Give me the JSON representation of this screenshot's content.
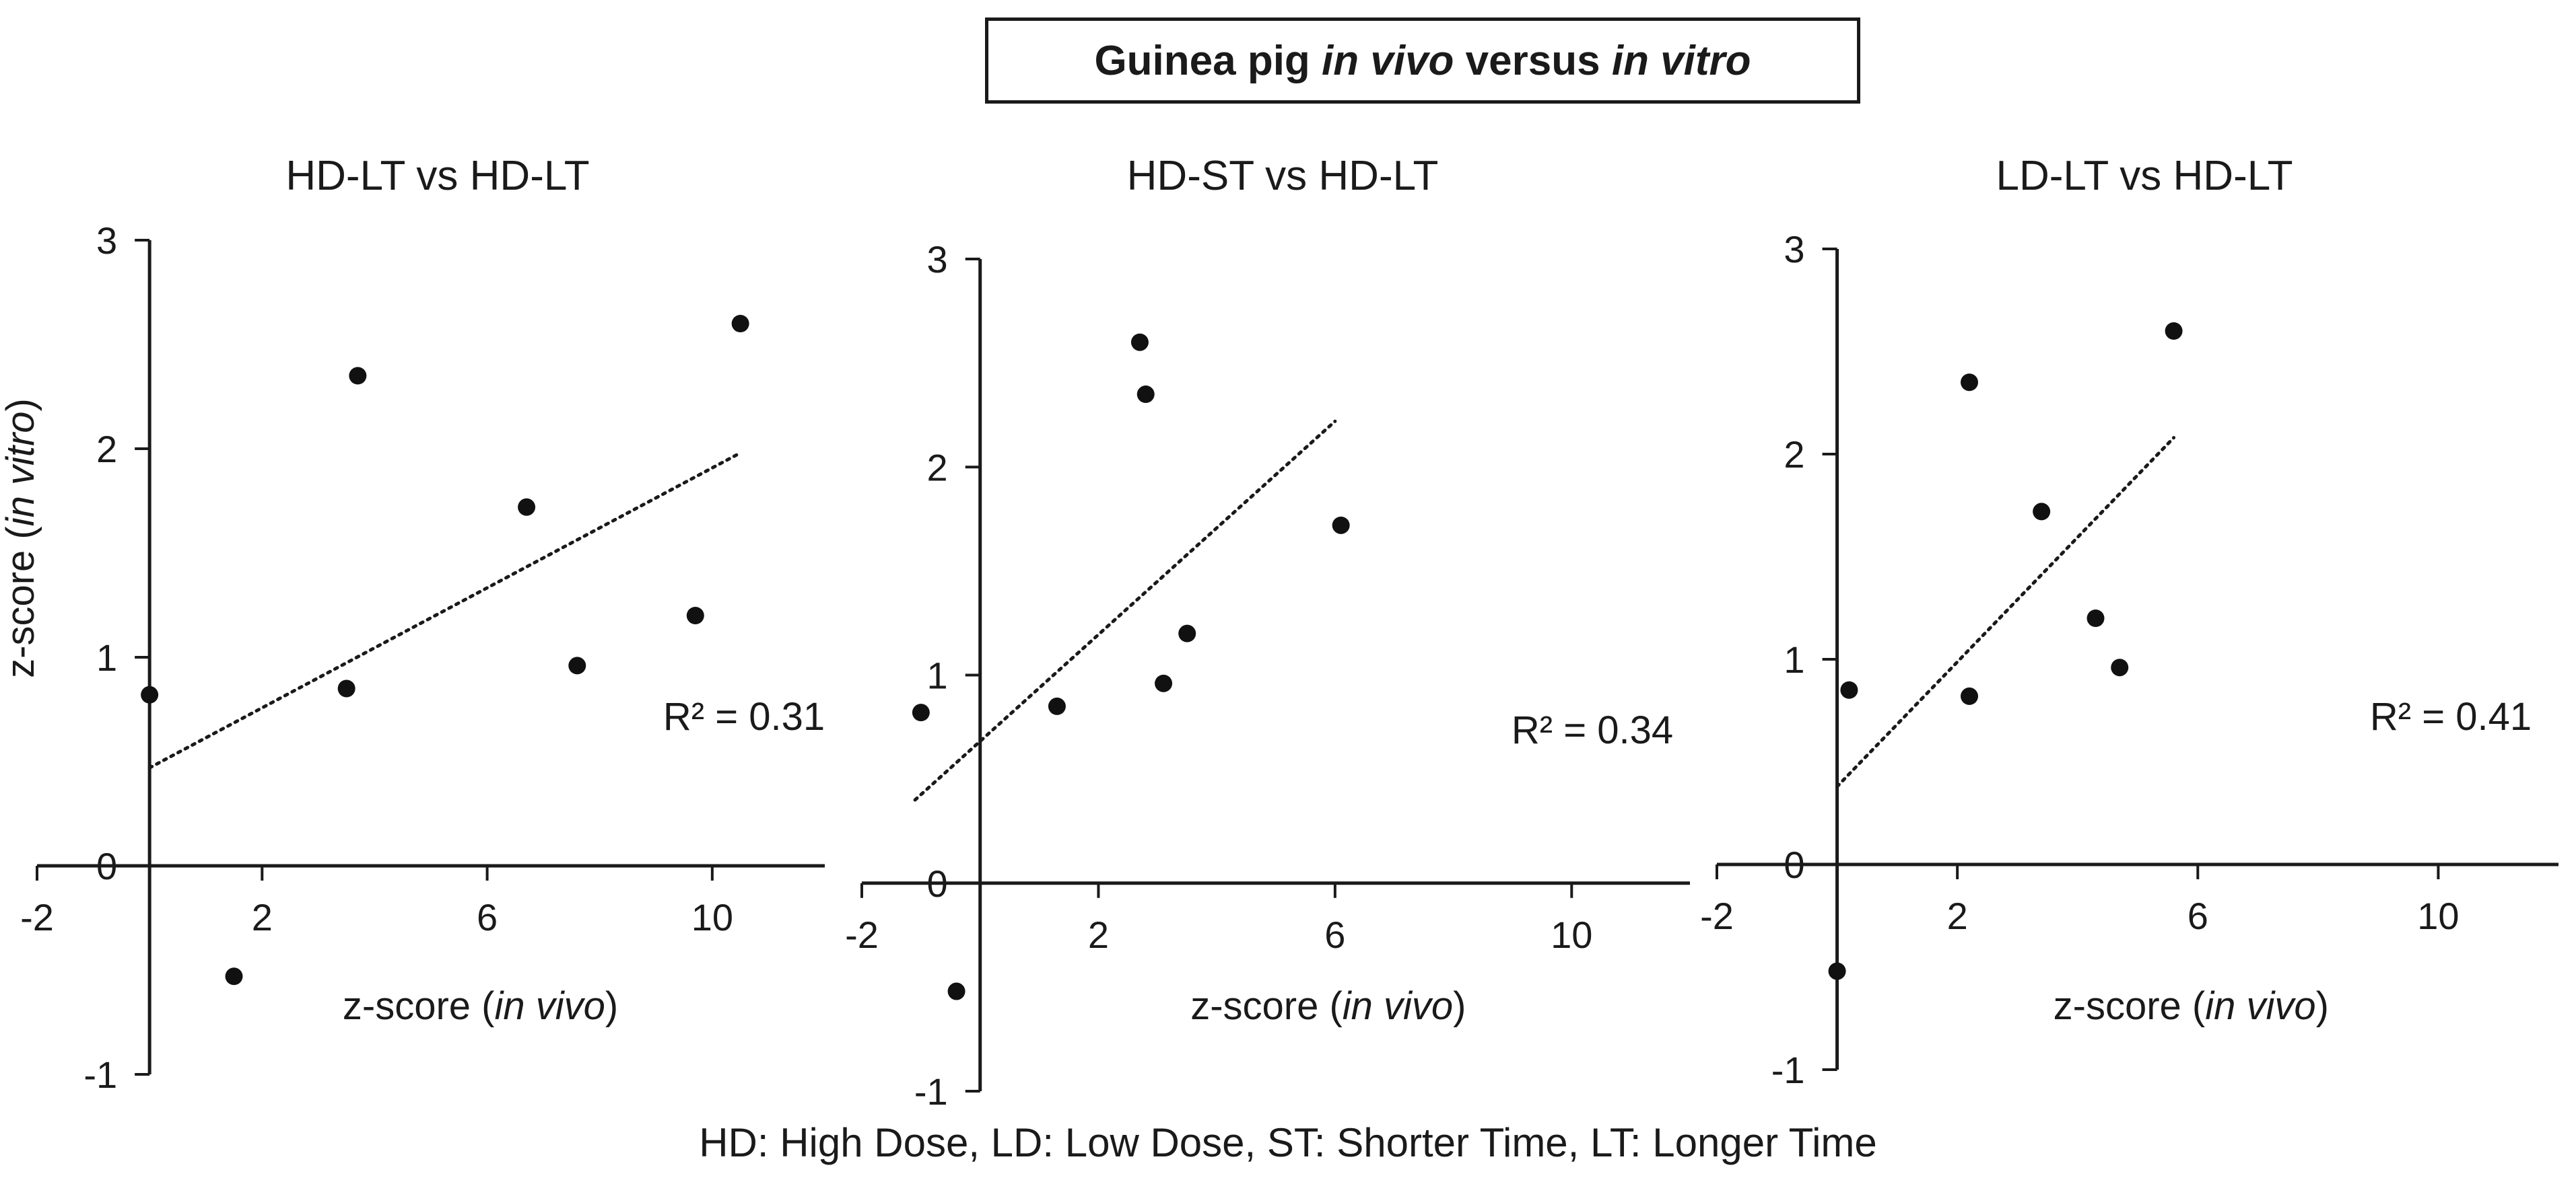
{
  "figure": {
    "title_parts": [
      "Guinea pig ",
      "in vivo",
      " versus ",
      "in vitro"
    ],
    "footer": "HD: High Dose, LD: Low Dose, ST: Shorter Time, LT: Longer Time"
  },
  "chart_data": [
    {
      "type": "scatter",
      "title": "HD-LT vs HD-LT",
      "xlabel_parts": [
        "z-score (",
        "in vivo",
        ")"
      ],
      "ylabel_parts": [
        "z-score (",
        "in vitro",
        ")"
      ],
      "xlim": [
        -2,
        12
      ],
      "ylim": [
        -1,
        3
      ],
      "xticks": [
        -2,
        2,
        6,
        10
      ],
      "yticks": [
        -1,
        0,
        1,
        2,
        3
      ],
      "tick_labels_x": [
        "-2",
        "2",
        "6",
        "10"
      ],
      "tick_labels_y": [
        "-1",
        "0",
        "1",
        "2",
        "3"
      ],
      "points": [
        {
          "x": 0.0,
          "y": 0.82
        },
        {
          "x": 1.5,
          "y": -0.53
        },
        {
          "x": 3.5,
          "y": 0.85
        },
        {
          "x": 3.7,
          "y": 2.35
        },
        {
          "x": 6.7,
          "y": 1.72
        },
        {
          "x": 7.6,
          "y": 0.96
        },
        {
          "x": 9.7,
          "y": 1.2
        },
        {
          "x": 10.5,
          "y": 2.6
        }
      ],
      "trendline": {
        "x": [
          0,
          10.5
        ],
        "y": [
          0.47,
          1.98
        ]
      },
      "r2_label": "R² = 0.31",
      "grid": false,
      "legend": "none"
    },
    {
      "type": "scatter",
      "title": "HD-ST vs HD-LT",
      "xlabel_parts": [
        "z-score (",
        "in vivo",
        ")"
      ],
      "ylabel_parts": [],
      "xlim": [
        -2,
        12
      ],
      "ylim": [
        -1,
        3
      ],
      "xticks": [
        -2,
        2,
        6,
        10
      ],
      "yticks": [
        -1,
        0,
        1,
        2,
        3
      ],
      "tick_labels_x": [
        "-2",
        "2",
        "6",
        "10"
      ],
      "tick_labels_y": [
        "-1",
        "0",
        "1",
        "2",
        "3"
      ],
      "points": [
        {
          "x": -1.0,
          "y": 0.82
        },
        {
          "x": -0.4,
          "y": -0.52
        },
        {
          "x": 1.3,
          "y": 0.85
        },
        {
          "x": 2.7,
          "y": 2.6
        },
        {
          "x": 2.8,
          "y": 2.35
        },
        {
          "x": 3.1,
          "y": 0.96
        },
        {
          "x": 3.5,
          "y": 1.2
        },
        {
          "x": 6.1,
          "y": 1.72
        }
      ],
      "trendline": {
        "x": [
          -1.1,
          6.0
        ],
        "y": [
          0.4,
          2.22
        ]
      },
      "r2_label": "R² = 0.34",
      "grid": false,
      "legend": "none"
    },
    {
      "type": "scatter",
      "title": "LD-LT vs HD-LT",
      "xlabel_parts": [
        "z-score (",
        "in vivo",
        ")"
      ],
      "ylabel_parts": [],
      "xlim": [
        -2,
        12
      ],
      "ylim": [
        -1,
        3
      ],
      "xticks": [
        -2,
        2,
        6,
        10
      ],
      "yticks": [
        -1,
        0,
        1,
        2,
        3
      ],
      "tick_labels_x": [
        "-2",
        "2",
        "6",
        "10"
      ],
      "tick_labels_y": [
        "-1",
        "0",
        "1",
        "2",
        "3"
      ],
      "points": [
        {
          "x": 0.0,
          "y": -0.52
        },
        {
          "x": 0.2,
          "y": 0.85
        },
        {
          "x": 2.2,
          "y": 0.82
        },
        {
          "x": 2.2,
          "y": 2.35
        },
        {
          "x": 3.4,
          "y": 1.72
        },
        {
          "x": 4.3,
          "y": 1.2
        },
        {
          "x": 4.7,
          "y": 0.96
        },
        {
          "x": 5.6,
          "y": 2.6
        }
      ],
      "trendline": {
        "x": [
          0,
          5.6
        ],
        "y": [
          0.38,
          2.08
        ]
      },
      "r2_label": "R² = 0.41",
      "grid": false,
      "legend": "none"
    }
  ]
}
